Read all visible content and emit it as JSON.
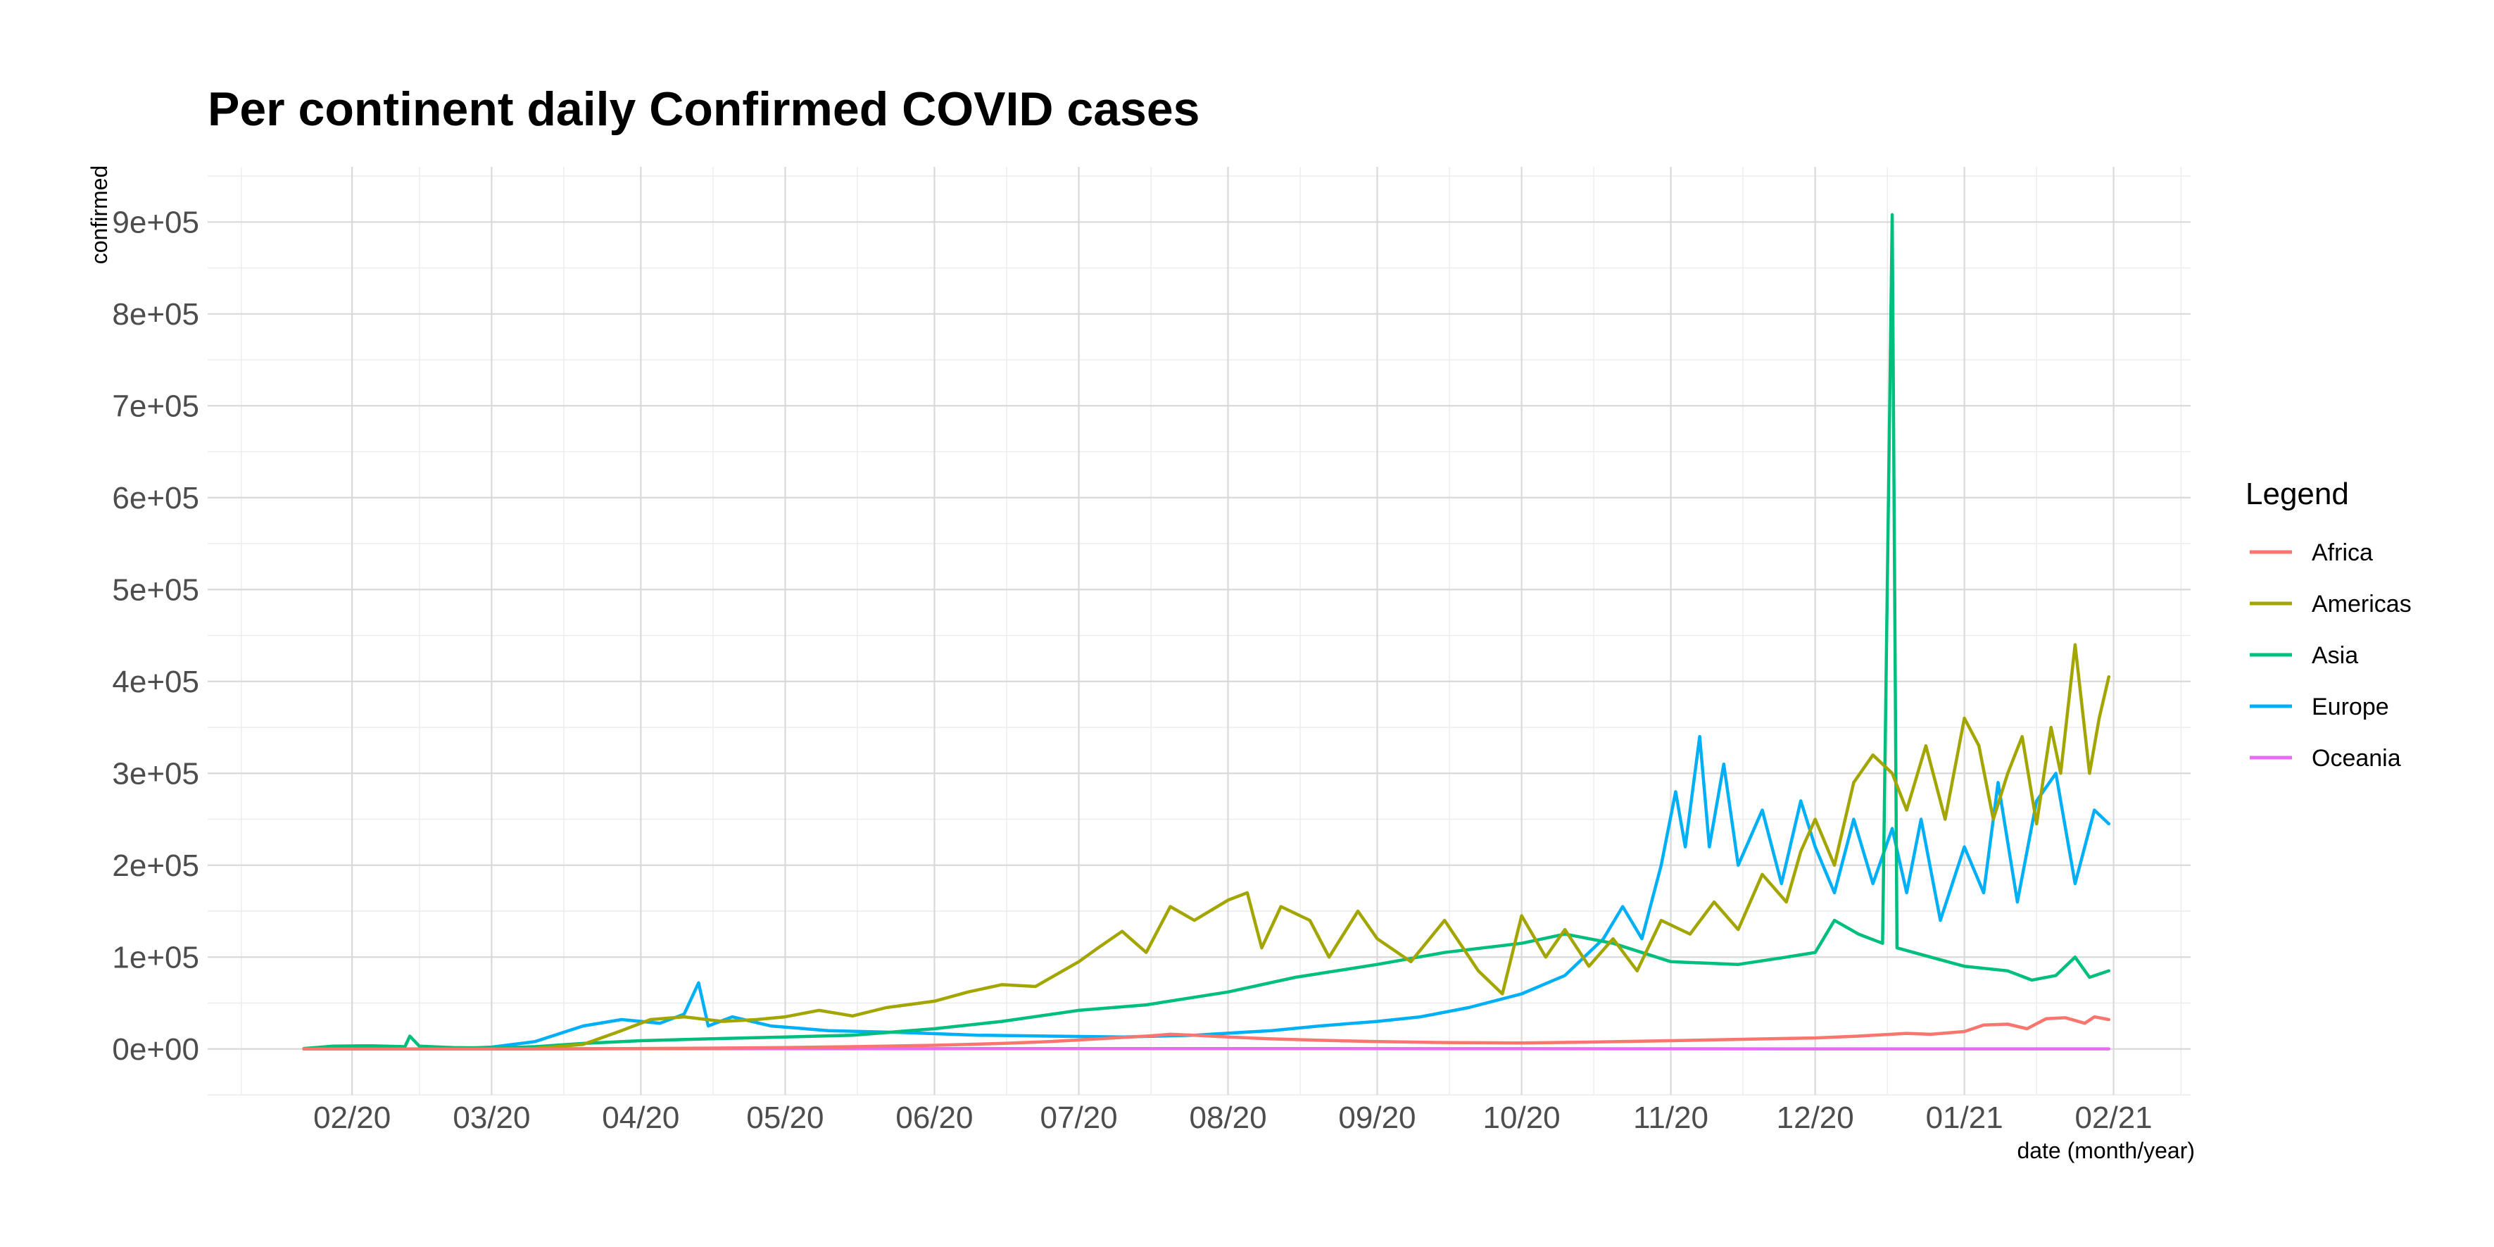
{
  "chart_data": {
    "type": "line",
    "title": "Per continent daily Confirmed COVID cases",
    "xlabel": "date (month/year)",
    "ylabel": "confirmed",
    "xlim": [
      "2020-01-02",
      "2021-02-17"
    ],
    "ylim": [
      -50000,
      960000
    ],
    "x_ticks": [
      {
        "date": "2020-02-01",
        "label": "02/20"
      },
      {
        "date": "2020-03-01",
        "label": "03/20"
      },
      {
        "date": "2020-04-01",
        "label": "04/20"
      },
      {
        "date": "2020-05-01",
        "label": "05/20"
      },
      {
        "date": "2020-06-01",
        "label": "06/20"
      },
      {
        "date": "2020-07-01",
        "label": "07/20"
      },
      {
        "date": "2020-08-01",
        "label": "08/20"
      },
      {
        "date": "2020-09-01",
        "label": "09/20"
      },
      {
        "date": "2020-10-01",
        "label": "10/20"
      },
      {
        "date": "2020-11-01",
        "label": "11/20"
      },
      {
        "date": "2020-12-01",
        "label": "12/20"
      },
      {
        "date": "2021-01-01",
        "label": "01/21"
      },
      {
        "date": "2021-02-01",
        "label": "02/21"
      }
    ],
    "y_ticks": [
      {
        "value": 0,
        "label": "0e+00"
      },
      {
        "value": 100000,
        "label": "1e+05"
      },
      {
        "value": 200000,
        "label": "2e+05"
      },
      {
        "value": 300000,
        "label": "3e+05"
      },
      {
        "value": 400000,
        "label": "4e+05"
      },
      {
        "value": 500000,
        "label": "5e+05"
      },
      {
        "value": 600000,
        "label": "6e+05"
      },
      {
        "value": 700000,
        "label": "7e+05"
      },
      {
        "value": 800000,
        "label": "8e+05"
      },
      {
        "value": 900000,
        "label": "9e+05"
      }
    ],
    "grid": true,
    "legend": {
      "title": "Legend",
      "position": "right"
    },
    "series": [
      {
        "name": "Africa",
        "color": "#F8766D",
        "points": [
          [
            "2020-01-22",
            0
          ],
          [
            "2020-03-01",
            0
          ],
          [
            "2020-03-20",
            200
          ],
          [
            "2020-04-10",
            700
          ],
          [
            "2020-05-01",
            1500
          ],
          [
            "2020-05-15",
            2500
          ],
          [
            "2020-06-01",
            4000
          ],
          [
            "2020-06-15",
            6000
          ],
          [
            "2020-06-25",
            8000
          ],
          [
            "2020-07-05",
            11000
          ],
          [
            "2020-07-15",
            14000
          ],
          [
            "2020-07-20",
            16000
          ],
          [
            "2020-07-25",
            15000
          ],
          [
            "2020-08-01",
            13000
          ],
          [
            "2020-08-10",
            11000
          ],
          [
            "2020-08-20",
            9500
          ],
          [
            "2020-09-01",
            8000
          ],
          [
            "2020-09-15",
            7000
          ],
          [
            "2020-10-01",
            6500
          ],
          [
            "2020-10-15",
            7500
          ],
          [
            "2020-11-01",
            9000
          ],
          [
            "2020-11-15",
            10500
          ],
          [
            "2020-12-01",
            12000
          ],
          [
            "2020-12-10",
            14000
          ],
          [
            "2020-12-20",
            17000
          ],
          [
            "2020-12-25",
            16000
          ],
          [
            "2021-01-01",
            19000
          ],
          [
            "2021-01-05",
            26000
          ],
          [
            "2021-01-10",
            27000
          ],
          [
            "2021-01-14",
            22000
          ],
          [
            "2021-01-18",
            33000
          ],
          [
            "2021-01-22",
            34000
          ],
          [
            "2021-01-26",
            28000
          ],
          [
            "2021-01-28",
            35000
          ],
          [
            "2021-01-31",
            32000
          ]
        ]
      },
      {
        "name": "Americas",
        "color": "#A3A500",
        "points": [
          [
            "2020-01-22",
            0
          ],
          [
            "2020-03-01",
            0
          ],
          [
            "2020-03-10",
            500
          ],
          [
            "2020-03-20",
            5000
          ],
          [
            "2020-03-28",
            20000
          ],
          [
            "2020-04-03",
            32000
          ],
          [
            "2020-04-10",
            35000
          ],
          [
            "2020-04-18",
            30000
          ],
          [
            "2020-04-25",
            32000
          ],
          [
            "2020-05-01",
            35000
          ],
          [
            "2020-05-08",
            42000
          ],
          [
            "2020-05-15",
            36000
          ],
          [
            "2020-05-22",
            45000
          ],
          [
            "2020-06-01",
            52000
          ],
          [
            "2020-06-08",
            62000
          ],
          [
            "2020-06-15",
            70000
          ],
          [
            "2020-06-22",
            68000
          ],
          [
            "2020-07-01",
            95000
          ],
          [
            "2020-07-05",
            110000
          ],
          [
            "2020-07-10",
            128000
          ],
          [
            "2020-07-15",
            105000
          ],
          [
            "2020-07-20",
            155000
          ],
          [
            "2020-07-25",
            140000
          ],
          [
            "2020-08-01",
            162000
          ],
          [
            "2020-08-05",
            170000
          ],
          [
            "2020-08-08",
            110000
          ],
          [
            "2020-08-12",
            155000
          ],
          [
            "2020-08-18",
            140000
          ],
          [
            "2020-08-22",
            100000
          ],
          [
            "2020-08-28",
            150000
          ],
          [
            "2020-09-01",
            120000
          ],
          [
            "2020-09-08",
            95000
          ],
          [
            "2020-09-15",
            140000
          ],
          [
            "2020-09-22",
            85000
          ],
          [
            "2020-09-27",
            60000
          ],
          [
            "2020-10-01",
            145000
          ],
          [
            "2020-10-06",
            100000
          ],
          [
            "2020-10-10",
            130000
          ],
          [
            "2020-10-15",
            90000
          ],
          [
            "2020-10-20",
            120000
          ],
          [
            "2020-10-25",
            85000
          ],
          [
            "2020-10-30",
            140000
          ],
          [
            "2020-11-05",
            125000
          ],
          [
            "2020-11-10",
            160000
          ],
          [
            "2020-11-15",
            130000
          ],
          [
            "2020-11-20",
            190000
          ],
          [
            "2020-11-25",
            160000
          ],
          [
            "2020-11-28",
            215000
          ],
          [
            "2020-12-01",
            250000
          ],
          [
            "2020-12-05",
            200000
          ],
          [
            "2020-12-09",
            290000
          ],
          [
            "2020-12-13",
            320000
          ],
          [
            "2020-12-17",
            300000
          ],
          [
            "2020-12-20",
            260000
          ],
          [
            "2020-12-24",
            330000
          ],
          [
            "2020-12-28",
            250000
          ],
          [
            "2021-01-01",
            360000
          ],
          [
            "2021-01-04",
            330000
          ],
          [
            "2021-01-07",
            250000
          ],
          [
            "2021-01-10",
            300000
          ],
          [
            "2021-01-13",
            340000
          ],
          [
            "2021-01-16",
            245000
          ],
          [
            "2021-01-19",
            350000
          ],
          [
            "2021-01-21",
            300000
          ],
          [
            "2021-01-24",
            440000
          ],
          [
            "2021-01-27",
            300000
          ],
          [
            "2021-01-29",
            360000
          ],
          [
            "2021-01-31",
            405000
          ]
        ]
      },
      {
        "name": "Asia",
        "color": "#00BF7D",
        "points": [
          [
            "2020-01-22",
            500
          ],
          [
            "2020-01-28",
            3000
          ],
          [
            "2020-02-05",
            3500
          ],
          [
            "2020-02-12",
            2500
          ],
          [
            "2020-02-13",
            14000
          ],
          [
            "2020-02-15",
            3000
          ],
          [
            "2020-02-22",
            1500
          ],
          [
            "2020-03-01",
            1000
          ],
          [
            "2020-03-10",
            2500
          ],
          [
            "2020-03-20",
            6000
          ],
          [
            "2020-04-01",
            9000
          ],
          [
            "2020-04-15",
            11000
          ],
          [
            "2020-05-01",
            13000
          ],
          [
            "2020-05-15",
            15000
          ],
          [
            "2020-06-01",
            22000
          ],
          [
            "2020-06-15",
            30000
          ],
          [
            "2020-07-01",
            42000
          ],
          [
            "2020-07-15",
            48000
          ],
          [
            "2020-08-01",
            62000
          ],
          [
            "2020-08-15",
            78000
          ],
          [
            "2020-09-01",
            92000
          ],
          [
            "2020-09-15",
            105000
          ],
          [
            "2020-10-01",
            115000
          ],
          [
            "2020-10-10",
            125000
          ],
          [
            "2020-10-20",
            115000
          ],
          [
            "2020-11-01",
            95000
          ],
          [
            "2020-11-15",
            92000
          ],
          [
            "2020-11-25",
            100000
          ],
          [
            "2020-12-01",
            105000
          ],
          [
            "2020-12-05",
            140000
          ],
          [
            "2020-12-10",
            125000
          ],
          [
            "2020-12-15",
            115000
          ],
          [
            "2020-12-17",
            908000
          ],
          [
            "2020-12-18",
            110000
          ],
          [
            "2020-12-25",
            100000
          ],
          [
            "2021-01-01",
            90000
          ],
          [
            "2021-01-10",
            85000
          ],
          [
            "2021-01-15",
            75000
          ],
          [
            "2021-01-20",
            80000
          ],
          [
            "2021-01-24",
            100000
          ],
          [
            "2021-01-27",
            78000
          ],
          [
            "2021-01-31",
            85000
          ]
        ]
      },
      {
        "name": "Europe",
        "color": "#00B0F6",
        "points": [
          [
            "2020-01-22",
            0
          ],
          [
            "2020-02-20",
            0
          ],
          [
            "2020-03-01",
            2000
          ],
          [
            "2020-03-10",
            8000
          ],
          [
            "2020-03-20",
            25000
          ],
          [
            "2020-03-28",
            32000
          ],
          [
            "2020-04-05",
            28000
          ],
          [
            "2020-04-10",
            38000
          ],
          [
            "2020-04-13",
            72000
          ],
          [
            "2020-04-15",
            25000
          ],
          [
            "2020-04-20",
            35000
          ],
          [
            "2020-04-28",
            25000
          ],
          [
            "2020-05-10",
            20000
          ],
          [
            "2020-05-25",
            18000
          ],
          [
            "2020-06-10",
            15000
          ],
          [
            "2020-06-25",
            14000
          ],
          [
            "2020-07-10",
            13000
          ],
          [
            "2020-07-25",
            15000
          ],
          [
            "2020-08-10",
            20000
          ],
          [
            "2020-08-20",
            25000
          ],
          [
            "2020-09-01",
            30000
          ],
          [
            "2020-09-10",
            35000
          ],
          [
            "2020-09-20",
            45000
          ],
          [
            "2020-10-01",
            60000
          ],
          [
            "2020-10-10",
            80000
          ],
          [
            "2020-10-18",
            120000
          ],
          [
            "2020-10-22",
            155000
          ],
          [
            "2020-10-26",
            120000
          ],
          [
            "2020-10-30",
            200000
          ],
          [
            "2020-11-02",
            280000
          ],
          [
            "2020-11-04",
            220000
          ],
          [
            "2020-11-07",
            340000
          ],
          [
            "2020-11-09",
            220000
          ],
          [
            "2020-11-12",
            310000
          ],
          [
            "2020-11-15",
            200000
          ],
          [
            "2020-11-20",
            260000
          ],
          [
            "2020-11-24",
            180000
          ],
          [
            "2020-11-28",
            270000
          ],
          [
            "2020-12-01",
            220000
          ],
          [
            "2020-12-05",
            170000
          ],
          [
            "2020-12-09",
            250000
          ],
          [
            "2020-12-13",
            180000
          ],
          [
            "2020-12-17",
            240000
          ],
          [
            "2020-12-20",
            170000
          ],
          [
            "2020-12-23",
            250000
          ],
          [
            "2020-12-27",
            140000
          ],
          [
            "2021-01-01",
            220000
          ],
          [
            "2021-01-05",
            170000
          ],
          [
            "2021-01-08",
            290000
          ],
          [
            "2021-01-12",
            160000
          ],
          [
            "2021-01-16",
            270000
          ],
          [
            "2021-01-20",
            300000
          ],
          [
            "2021-01-24",
            180000
          ],
          [
            "2021-01-28",
            260000
          ],
          [
            "2021-01-31",
            245000
          ]
        ]
      },
      {
        "name": "Oceania",
        "color": "#E76BF3",
        "points": [
          [
            "2020-01-22",
            0
          ],
          [
            "2020-04-01",
            300
          ],
          [
            "2020-08-01",
            400
          ],
          [
            "2020-12-01",
            100
          ],
          [
            "2021-01-31",
            100
          ]
        ]
      }
    ]
  }
}
